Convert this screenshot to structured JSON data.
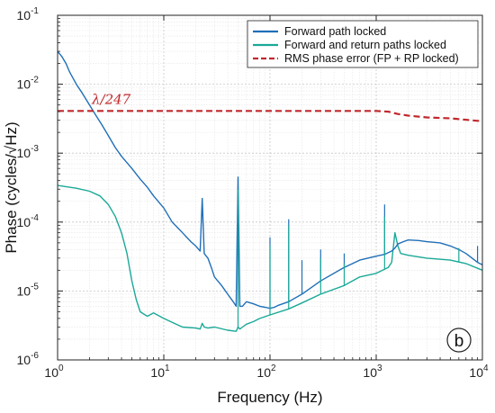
{
  "chart_data": {
    "type": "line",
    "x_scale": "log",
    "y_scale": "log",
    "xlim": [
      1,
      10000
    ],
    "ylim": [
      1e-06,
      0.1
    ],
    "grid": true,
    "legend_position": "top-right",
    "xlabel": "Frequency (Hz)",
    "ylabel": "Phase (cycles/√Hz)",
    "x_ticks": [
      {
        "value": 1,
        "base": "10",
        "exp": "0"
      },
      {
        "value": 10,
        "base": "10",
        "exp": "1"
      },
      {
        "value": 100,
        "base": "10",
        "exp": "2"
      },
      {
        "value": 1000,
        "base": "10",
        "exp": "3"
      },
      {
        "value": 10000,
        "base": "10",
        "exp": "4"
      }
    ],
    "y_ticks": [
      {
        "value": 1e-06,
        "base": "10",
        "exp": "-6"
      },
      {
        "value": 1e-05,
        "base": "10",
        "exp": "-5"
      },
      {
        "value": 0.0001,
        "base": "10",
        "exp": "-4"
      },
      {
        "value": 0.001,
        "base": "10",
        "exp": "-3"
      },
      {
        "value": 0.01,
        "base": "10",
        "exp": "-2"
      },
      {
        "value": 0.1,
        "base": "10",
        "exp": "-1"
      }
    ],
    "annotation": {
      "text": "λ/247",
      "x": 2.1,
      "y": 0.0052
    },
    "panel_label": "b",
    "series": [
      {
        "name": "Forward path locked",
        "color": "#1f6fb8",
        "style": "solid",
        "x": [
          1,
          1.1,
          1.2,
          1.3,
          1.5,
          1.7,
          2,
          2.3,
          2.6,
          3,
          3.5,
          4,
          5,
          6,
          7,
          8,
          10,
          12,
          15,
          18,
          20,
          22,
          23,
          24,
          26,
          28,
          30,
          35,
          40,
          45,
          48,
          50,
          52,
          55,
          60,
          70,
          80,
          90,
          100,
          110,
          120,
          150,
          200,
          300,
          500,
          700,
          1000,
          1200,
          1400,
          1500,
          1600,
          1800,
          2000,
          2500,
          3000,
          4000,
          5000,
          6000,
          7000,
          8000,
          9000,
          10000
        ],
        "y": [
          0.03,
          0.025,
          0.02,
          0.015,
          0.01,
          0.0075,
          0.005,
          0.0035,
          0.0026,
          0.0018,
          0.0012,
          0.0009,
          0.0006,
          0.00042,
          0.00032,
          0.00024,
          0.00016,
          0.0001,
          7e-05,
          5.2e-05,
          4.5e-05,
          3.8e-05,
          0.00022,
          3.5e-05,
          3e-05,
          2.2e-05,
          1.6e-05,
          1.2e-05,
          9e-06,
          7e-06,
          6e-06,
          0.00045,
          6e-06,
          6e-06,
          7e-06,
          6.5e-06,
          6e-06,
          5.8e-06,
          5.6e-06,
          5.8e-06,
          6.2e-06,
          7e-06,
          9e-06,
          1.4e-05,
          2.2e-05,
          2.8e-05,
          3.2e-05,
          3.4e-05,
          3.8e-05,
          4.2e-05,
          4.8e-05,
          5.2e-05,
          5.5e-05,
          5.4e-05,
          5.2e-05,
          5e-05,
          4.5e-05,
          4e-05,
          3.5e-05,
          3e-05,
          2.6e-05,
          2.4e-05
        ]
      },
      {
        "name": "Forward and return paths locked",
        "color": "#1aa997",
        "style": "solid",
        "x": [
          1,
          1.5,
          2,
          2.5,
          3,
          3.5,
          4,
          4.5,
          5,
          5.5,
          6,
          7,
          8,
          10,
          12,
          15,
          20,
          22,
          23,
          24,
          26,
          30,
          40,
          48,
          50,
          52,
          55,
          60,
          70,
          80,
          100,
          150,
          200,
          300,
          500,
          700,
          1000,
          1300,
          1400,
          1500,
          1600,
          1700,
          2000,
          3000,
          5000,
          7000,
          10000
        ],
        "y": [
          0.00034,
          0.00031,
          0.00028,
          0.00024,
          0.00018,
          0.00012,
          7e-05,
          3.5e-05,
          1.4e-05,
          7.5e-06,
          5e-06,
          4.3e-06,
          4.8e-06,
          4e-06,
          3.5e-06,
          3e-06,
          2.9e-06,
          2.8e-06,
          3.4e-06,
          3e-06,
          2.9e-06,
          3e-06,
          2.7e-06,
          2.6e-06,
          3e-06,
          2.8e-06,
          3e-06,
          3.3e-06,
          3.6e-06,
          4e-06,
          4.5e-06,
          5.5e-06,
          6.7e-06,
          9e-06,
          1.2e-05,
          1.6e-05,
          1.8e-05,
          2.2e-05,
          2.6e-05,
          7e-05,
          4.5e-05,
          3.5e-05,
          3.3e-05,
          3e-05,
          2.8e-05,
          2.5e-05,
          2e-05
        ]
      },
      {
        "name": "RMS phase error (FP + RP locked)",
        "color": "#c0282d",
        "style": "dashed",
        "x": [
          1,
          10,
          100,
          1000,
          1300,
          1600,
          2000,
          3000,
          5000,
          10000
        ],
        "y": [
          0.0041,
          0.0041,
          0.0041,
          0.0041,
          0.004,
          0.0037,
          0.0035,
          0.0033,
          0.0032,
          0.0029
        ]
      }
    ],
    "spikes": [
      {
        "series": 0,
        "x": 23,
        "y": 0.00022
      },
      {
        "series": 0,
        "x": 50,
        "y": 0.00045
      },
      {
        "series": 0,
        "x": 100,
        "y": 6e-05
      },
      {
        "series": 0,
        "x": 150,
        "y": 0.00011
      },
      {
        "series": 0,
        "x": 200,
        "y": 2.8e-05
      },
      {
        "series": 0,
        "x": 300,
        "y": 4e-05
      },
      {
        "series": 0,
        "x": 500,
        "y": 3.5e-05
      },
      {
        "series": 0,
        "x": 1200,
        "y": 0.00018
      },
      {
        "series": 0,
        "x": 9000,
        "y": 4.5e-05
      },
      {
        "series": 1,
        "x": 50,
        "y": 0.0003
      },
      {
        "series": 1,
        "x": 100,
        "y": 4.5e-05
      },
      {
        "series": 1,
        "x": 150,
        "y": 9e-05
      },
      {
        "series": 1,
        "x": 300,
        "y": 3e-05
      },
      {
        "series": 1,
        "x": 500,
        "y": 2.5e-05
      },
      {
        "series": 1,
        "x": 1200,
        "y": 0.00012
      },
      {
        "series": 1,
        "x": 6000,
        "y": 4.2e-05
      }
    ]
  }
}
